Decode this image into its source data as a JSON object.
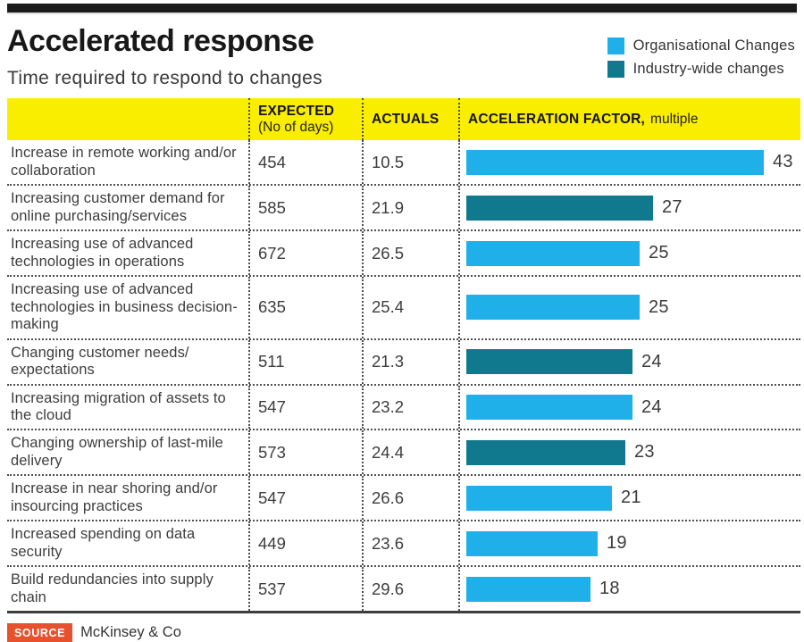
{
  "page": {
    "title": "Accelerated response",
    "subtitle": "Time required to respond to changes"
  },
  "legend": {
    "items": [
      {
        "label": "Organisational Changes",
        "color": "#1fb0e9"
      },
      {
        "label": "Industry-wide changes",
        "color": "#11798d"
      }
    ]
  },
  "table_headers": {
    "expected": "EXPECTED",
    "expected_sub": "(No of days)",
    "actuals": "ACTUALS",
    "acceleration": "ACCELERATION FACTOR,",
    "acceleration_sub": "multiple"
  },
  "chart_data": {
    "type": "bar",
    "orientation": "horizontal",
    "title": "Accelerated response",
    "subtitle": "Time required to respond to changes",
    "value_axis_label": "ACCELERATION FACTOR, multiple",
    "xlim": [
      0,
      43
    ],
    "grid": false,
    "legend_position": "top-right",
    "series": [
      {
        "name": "Organisational Changes",
        "color": "#1fb0e9"
      },
      {
        "name": "Industry-wide changes",
        "color": "#11798d"
      }
    ],
    "categories": [
      "Increase in remote working and/or collaboration",
      "Increasing customer demand for online purchasing/services",
      "Increasing use of advanced technologies in operations",
      "Increasing use of advanced technologies in business decision-making",
      "Changing customer needs/ expectations",
      "Increasing migration of assets to the cloud",
      "Changing ownership of last-mile delivery",
      "Increase in near shoring and/or insourcing practices",
      "Increased spending on data security",
      "Build redundancies into supply chain"
    ],
    "rows": [
      {
        "label": "Increase in remote working and/or collaboration",
        "expected_days": "454",
        "actual_days": "10.5",
        "acceleration_factor": 43,
        "series": "Organisational Changes"
      },
      {
        "label": "Increasing customer demand for online purchasing/services",
        "expected_days": "585",
        "actual_days": "21.9",
        "acceleration_factor": 27,
        "series": "Industry-wide changes"
      },
      {
        "label": "Increasing use of advanced technologies in operations",
        "expected_days": "672",
        "actual_days": "26.5",
        "acceleration_factor": 25,
        "series": "Organisational Changes"
      },
      {
        "label": "Increasing use of advanced technologies in business decision-making",
        "expected_days": "635",
        "actual_days": "25.4",
        "acceleration_factor": 25,
        "series": "Organisational Changes"
      },
      {
        "label": "Changing customer needs/ expectations",
        "expected_days": "511",
        "actual_days": "21.3",
        "acceleration_factor": 24,
        "series": "Industry-wide changes"
      },
      {
        "label": "Increasing migration of assets to the cloud",
        "expected_days": "547",
        "actual_days": "23.2",
        "acceleration_factor": 24,
        "series": "Organisational Changes"
      },
      {
        "label": "Changing ownership of last-mile delivery",
        "expected_days": "573",
        "actual_days": "24.4",
        "acceleration_factor": 23,
        "series": "Industry-wide changes"
      },
      {
        "label": "Increase in near shoring and/or insourcing practices",
        "expected_days": "547",
        "actual_days": "26.6",
        "acceleration_factor": 21,
        "series": "Organisational Changes"
      },
      {
        "label": "Increased spending on data security",
        "expected_days": "449",
        "actual_days": "23.6",
        "acceleration_factor": 19,
        "series": "Organisational Changes"
      },
      {
        "label": "Build redundancies into supply chain",
        "expected_days": "537",
        "actual_days": "29.6",
        "acceleration_factor": 18,
        "series": "Organisational Changes"
      }
    ]
  },
  "source": {
    "label": "SOURCE",
    "value": "McKinsey & Co"
  }
}
